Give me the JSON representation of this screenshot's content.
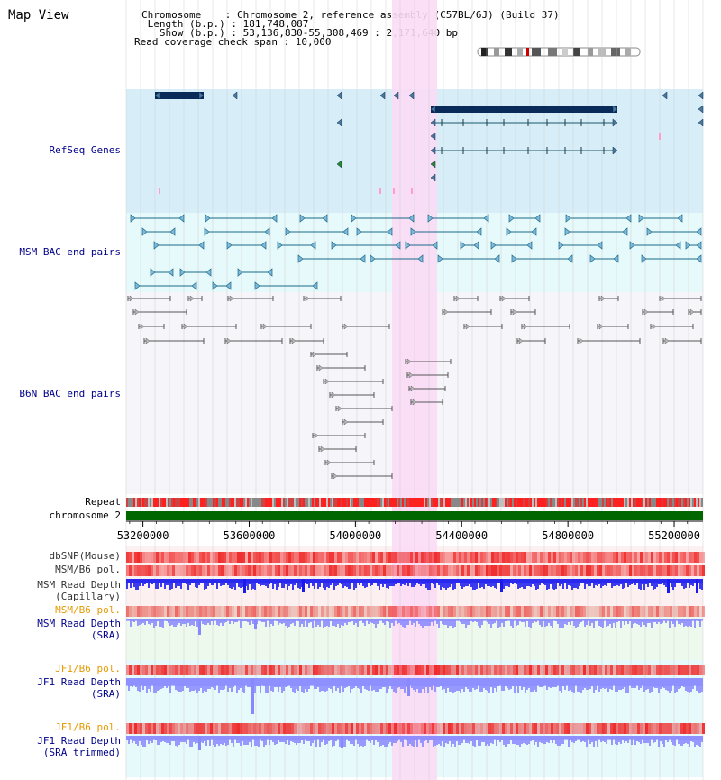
{
  "header": {
    "title": "Map View",
    "info_lines": [
      "Chromosome    : Chromosome 2, reference assembly (C57BL/6J) (Build 37)",
      " Length (b.p.) : 181,748,087",
      "   Show (b.p.) : 53,136,830-55,308,469 : 2,171,640 bp",
      "Read coverage check span : 10,000"
    ]
  },
  "tracks": {
    "refseq": "RefSeq Genes",
    "msm_bac": "MSM BAC end pairs",
    "b6n_bac": "B6N BAC end pairs",
    "repeat": "Repeat",
    "chromosome": "chromosome 2",
    "dbsnp": "dbSNP(Mouse)",
    "msm_b6_pol": "MSM/B6 pol.",
    "msm_depth_cap_1": "MSM Read Depth",
    "msm_depth_cap_2": "(Capillary)",
    "msm_b6_pol_sra": "MSM/B6 pol.",
    "msm_depth_sra_1": "MSM Read Depth",
    "msm_depth_sra_2": "(SRA)",
    "jf1_b6_pol": "JF1/B6 pol.",
    "jf1_depth_sra_1": "JF1 Read Depth",
    "jf1_depth_sra_2": "(SRA)",
    "jf1_b6_pol_trim": "JF1/B6 pol.",
    "jf1_depth_trim_1": "JF1 Read Depth",
    "jf1_depth_trim_2": "(SRA trimmed)"
  },
  "axis": {
    "ticks": [
      "53200000",
      "53600000",
      "54000000",
      "54400000",
      "54800000",
      "55200000"
    ],
    "range": [
      53136830,
      55308469
    ]
  },
  "colors": {
    "refseq_bg": "#d7eef8",
    "bac_bg": "#e6f9fb",
    "highlight": "#fbdcf5",
    "gene": "#0a2a5a",
    "chromosome": "#006600",
    "depth": "#1a1aee",
    "depth_light": "#8888ff",
    "label_blue": "#00008b",
    "label_orange": "#e69a00"
  }
}
